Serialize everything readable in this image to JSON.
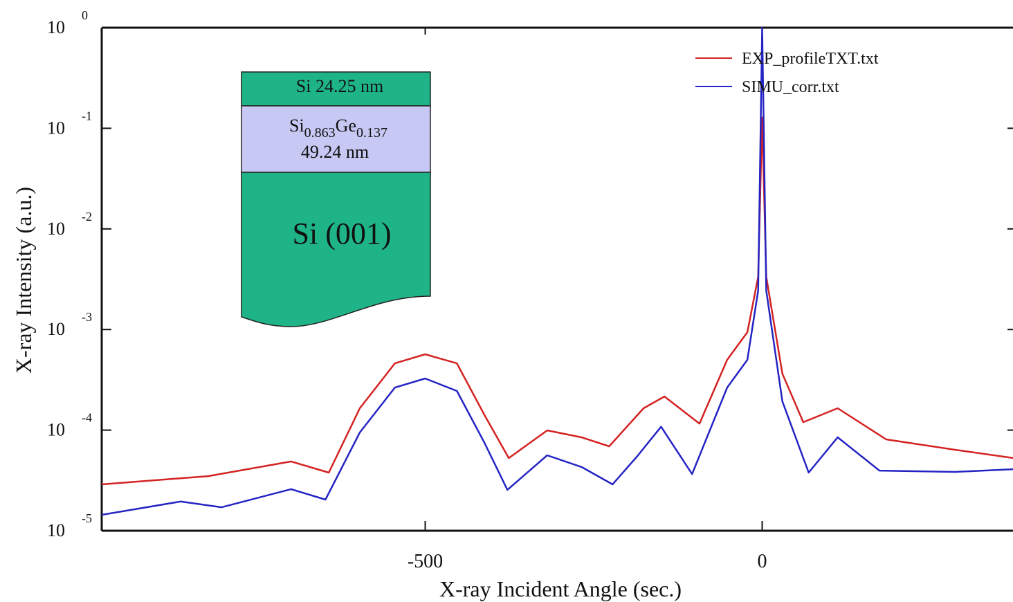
{
  "chart_data": {
    "type": "line",
    "xlabel": "X-ray Incident Angle (sec.)",
    "ylabel": "X-ray Intensity (a.u.)",
    "log_y": true,
    "legend": "top-right",
    "xlim": [
      -980,
      373
    ],
    "xticks": [
      -500,
      0
    ],
    "ylim": [
      1e-05,
      1
    ],
    "yticks": [
      {
        "value": 1,
        "label": "10",
        "exponent": "0"
      },
      {
        "value": 0.1,
        "label": "10",
        "exponent": "-1"
      },
      {
        "value": 0.01,
        "label": "10",
        "exponent": "-2"
      },
      {
        "value": 0.001,
        "label": "10",
        "exponent": "-3"
      },
      {
        "value": 0.0001,
        "label": "10",
        "exponent": "-4"
      },
      {
        "value": 1e-05,
        "label": "10",
        "exponent": "-5"
      }
    ],
    "series": [
      {
        "name": "EXP_profileTXT.txt",
        "color": "#d42222",
        "x": [
          -980,
          -822,
          -699,
          -643,
          -597,
          -545,
          -500,
          -453,
          -412,
          -376,
          -319,
          -268,
          -227,
          -176,
          -145,
          -93,
          -52,
          -22,
          -6,
          0,
          6,
          30,
          61,
          112,
          184,
          286,
          373
        ],
        "values": [
          2.89e-05,
          3.49e-05,
          4.88e-05,
          3.78e-05,
          0.000165,
          0.000461,
          0.000567,
          0.000461,
          0.000141,
          5.27e-05,
          9.93e-05,
          8.48e-05,
          6.9e-05,
          0.000165,
          0.000216,
          0.000116,
          0.0005,
          0.00094,
          0.00334,
          0.128,
          0.00334,
          0.000364,
          0.00012,
          0.000165,
          8.09e-05,
          6.38e-05,
          5.27e-05
        ]
      },
      {
        "name": "SIMU_corr.txt",
        "color": "#2424c4",
        "x": [
          -980,
          -863,
          -802,
          -699,
          -648,
          -597,
          -545,
          -500,
          -453,
          -412,
          -378,
          -319,
          -268,
          -222,
          -186,
          -150,
          -104,
          -52,
          -22,
          -6,
          0,
          6,
          30,
          69,
          112,
          174,
          286,
          373
        ],
        "values": [
          1.44e-05,
          1.95e-05,
          1.71e-05,
          2.59e-05,
          2.04e-05,
          9.48e-05,
          0.000265,
          0.000326,
          0.000245,
          7.47e-05,
          2.55e-05,
          5.62e-05,
          4.3e-05,
          2.89e-05,
          5.44e-05,
          0.000108,
          3.66e-05,
          0.000265,
          0.0005,
          0.00244,
          1,
          0.00244,
          0.000193,
          3.78e-05,
          8.48e-05,
          3.96e-05,
          3.84e-05,
          4.09e-05
        ]
      }
    ]
  },
  "inset": {
    "top_layer": "Si 24.25 nm",
    "middle_layer": {
      "parts": [
        "Si",
        "0.863",
        "Ge",
        "0.137"
      ],
      "thickness": "49.24 nm"
    },
    "substrate": "Si (001)"
  }
}
